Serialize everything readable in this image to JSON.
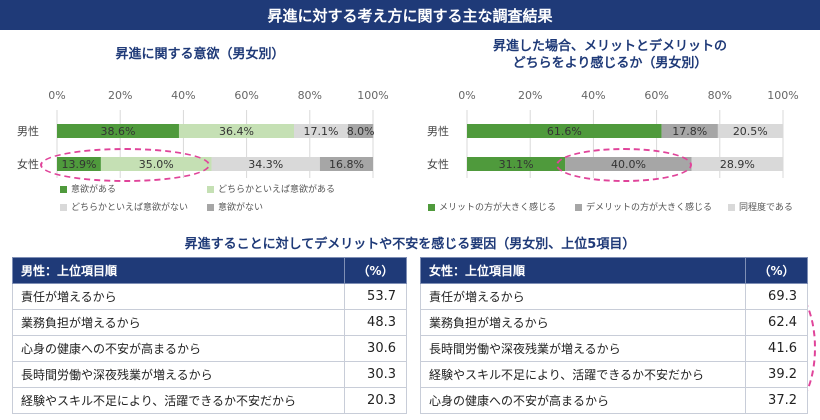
{
  "banner": "昇進に対する考え方に関する主な調査結果",
  "chart_data": [
    {
      "type": "bar",
      "stacked": true,
      "orientation": "horizontal",
      "title": "昇進に関する意欲（男女別）",
      "categories": [
        "男性",
        "女性"
      ],
      "series": [
        {
          "name": "意欲がある",
          "values": [
            38.6,
            13.9
          ],
          "color": "#4f9a3c"
        },
        {
          "name": "どちらかといえば意欲がある",
          "values": [
            36.4,
            35.0
          ],
          "color": "#c5e0b4"
        },
        {
          "name": "どちらかといえば意欲がない",
          "values": [
            17.1,
            34.3
          ],
          "color": "#d9d9d9"
        },
        {
          "name": "意欲がない",
          "values": [
            8.0,
            16.8
          ],
          "color": "#a6a6a6"
        }
      ],
      "data_labels": [
        [
          "38.6%",
          "36.4%",
          "17.1%",
          "8.0%"
        ],
        [
          "13.9%",
          "35.0%",
          "34.3%",
          "16.8%"
        ]
      ],
      "xlim": [
        0,
        100
      ],
      "ticks": [
        "0%",
        "20%",
        "40%",
        "60%",
        "80%",
        "100%"
      ],
      "legend": "bottom"
    },
    {
      "type": "bar",
      "stacked": true,
      "orientation": "horizontal",
      "title": "昇進した場合、メリットとデメリットの どちらをより感じるか（男女別）",
      "title_lines": [
        "昇進した場合、メリットとデメリットの",
        "どちらをより感じるか（男女別）"
      ],
      "categories": [
        "男性",
        "女性"
      ],
      "series": [
        {
          "name": "メリットの方が大きく感じる",
          "values": [
            61.6,
            31.1
          ],
          "color": "#4f9a3c"
        },
        {
          "name": "デメリットの方が大きく感じる",
          "values": [
            17.8,
            40.0
          ],
          "color": "#a6a6a6"
        },
        {
          "name": "同程度である",
          "values": [
            20.5,
            28.9
          ],
          "color": "#d9d9d9"
        }
      ],
      "data_labels": [
        [
          "61.6%",
          "17.8%",
          "20.5%"
        ],
        [
          "31.1%",
          "40.0%",
          "28.9%"
        ]
      ],
      "xlim": [
        0,
        100
      ],
      "ticks": [
        "0%",
        "20%",
        "40%",
        "60%",
        "80%",
        "100%"
      ],
      "legend": "bottom"
    }
  ],
  "section_title": "昇進することに対してデメリットや不安を感じる要因（男女別、上位5項目）",
  "male_table": {
    "header": "男性：上位項目順",
    "pct_header": "（%）",
    "rows": [
      {
        "label": "責任が増えるから",
        "value": "53.7"
      },
      {
        "label": "業務負担が増えるから",
        "value": "48.3"
      },
      {
        "label": "心身の健康への不安が高まるから",
        "value": "30.6"
      },
      {
        "label": "長時間労働や深夜残業が増えるから",
        "value": "30.3"
      },
      {
        "label": "経験やスキル不足により、活躍できるか不安だから",
        "value": "20.3"
      }
    ]
  },
  "female_table": {
    "header": "女性：上位項目順",
    "pct_header": "（%）",
    "rows": [
      {
        "label": "責任が増えるから",
        "value": "69.3"
      },
      {
        "label": "業務負担が増えるから",
        "value": "62.4"
      },
      {
        "label": "長時間労働や深夜残業が増えるから",
        "value": "41.6"
      },
      {
        "label": "経験やスキル不足により、活躍できるか不安だから",
        "value": "39.2"
      },
      {
        "label": "心身の健康への不安が高まるから",
        "value": "37.2"
      }
    ]
  }
}
